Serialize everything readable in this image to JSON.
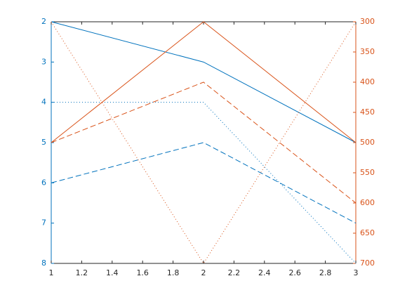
{
  "chart_data": {
    "type": "line",
    "x": [
      1,
      2,
      3
    ],
    "xlim": [
      1,
      3
    ],
    "xticks": [
      1,
      1.2,
      1.4,
      1.6,
      1.8,
      2,
      2.2,
      2.4,
      2.6,
      2.8,
      3
    ],
    "ylim": [
      2,
      8
    ],
    "yticks": [
      2,
      3,
      4,
      5,
      6,
      7,
      8
    ],
    "ydir": "reverse",
    "ycolor": "#0072bd",
    "y2lim": [
      300,
      700
    ],
    "y2ticks": [
      300,
      350,
      400,
      450,
      500,
      550,
      600,
      650,
      700
    ],
    "y2dir": "reverse",
    "y2color": "#d95319",
    "series": [
      {
        "color": "#0072bd",
        "style": "solid",
        "values": [
          2,
          3,
          5
        ]
      },
      {
        "color": "#0072bd",
        "style": "dotted",
        "values": [
          4,
          4,
          8
        ]
      },
      {
        "color": "#0072bd",
        "style": "dashed",
        "values": [
          6,
          5,
          7
        ]
      },
      {
        "color": "#d95319",
        "style": "solid",
        "axis": "y2",
        "values": [
          500,
          300,
          500
        ]
      },
      {
        "color": "#d95319",
        "style": "dashed",
        "axis": "y2",
        "values": [
          500,
          400,
          600
        ]
      },
      {
        "color": "#d95319",
        "style": "dotted",
        "axis": "y2",
        "values": [
          300,
          700,
          300
        ]
      }
    ]
  }
}
